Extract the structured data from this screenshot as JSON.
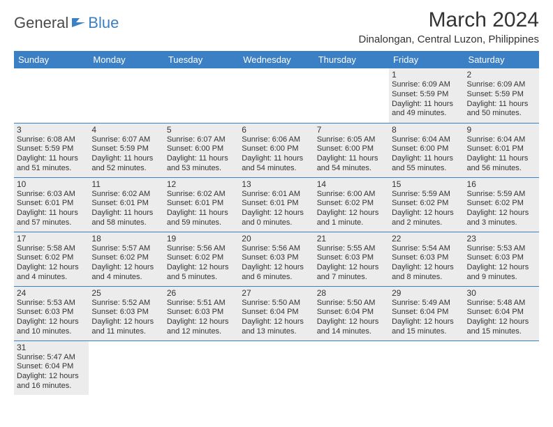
{
  "logo": {
    "text1": "General",
    "text2": "Blue"
  },
  "title": "March 2024",
  "location": "Dinalongan, Central Luzon, Philippines",
  "colors": {
    "header_bg": "#3b7fc4",
    "header_text": "#ffffff",
    "shade_bg": "#ececec",
    "border": "#3b7fc4",
    "logo_gray": "#4a4a4a",
    "logo_blue": "#3b7fc4"
  },
  "weekdays": [
    "Sunday",
    "Monday",
    "Tuesday",
    "Wednesday",
    "Thursday",
    "Friday",
    "Saturday"
  ],
  "weeks": [
    [
      {
        "empty": true
      },
      {
        "empty": true
      },
      {
        "empty": true
      },
      {
        "empty": true
      },
      {
        "empty": true
      },
      {
        "day": "1",
        "sunrise": "Sunrise: 6:09 AM",
        "sunset": "Sunset: 5:59 PM",
        "daylight": "Daylight: 11 hours and 49 minutes."
      },
      {
        "day": "2",
        "sunrise": "Sunrise: 6:09 AM",
        "sunset": "Sunset: 5:59 PM",
        "daylight": "Daylight: 11 hours and 50 minutes."
      }
    ],
    [
      {
        "day": "3",
        "sunrise": "Sunrise: 6:08 AM",
        "sunset": "Sunset: 5:59 PM",
        "daylight": "Daylight: 11 hours and 51 minutes."
      },
      {
        "day": "4",
        "sunrise": "Sunrise: 6:07 AM",
        "sunset": "Sunset: 5:59 PM",
        "daylight": "Daylight: 11 hours and 52 minutes."
      },
      {
        "day": "5",
        "sunrise": "Sunrise: 6:07 AM",
        "sunset": "Sunset: 6:00 PM",
        "daylight": "Daylight: 11 hours and 53 minutes."
      },
      {
        "day": "6",
        "sunrise": "Sunrise: 6:06 AM",
        "sunset": "Sunset: 6:00 PM",
        "daylight": "Daylight: 11 hours and 54 minutes."
      },
      {
        "day": "7",
        "sunrise": "Sunrise: 6:05 AM",
        "sunset": "Sunset: 6:00 PM",
        "daylight": "Daylight: 11 hours and 54 minutes."
      },
      {
        "day": "8",
        "sunrise": "Sunrise: 6:04 AM",
        "sunset": "Sunset: 6:00 PM",
        "daylight": "Daylight: 11 hours and 55 minutes."
      },
      {
        "day": "9",
        "sunrise": "Sunrise: 6:04 AM",
        "sunset": "Sunset: 6:01 PM",
        "daylight": "Daylight: 11 hours and 56 minutes."
      }
    ],
    [
      {
        "day": "10",
        "sunrise": "Sunrise: 6:03 AM",
        "sunset": "Sunset: 6:01 PM",
        "daylight": "Daylight: 11 hours and 57 minutes."
      },
      {
        "day": "11",
        "sunrise": "Sunrise: 6:02 AM",
        "sunset": "Sunset: 6:01 PM",
        "daylight": "Daylight: 11 hours and 58 minutes."
      },
      {
        "day": "12",
        "sunrise": "Sunrise: 6:02 AM",
        "sunset": "Sunset: 6:01 PM",
        "daylight": "Daylight: 11 hours and 59 minutes."
      },
      {
        "day": "13",
        "sunrise": "Sunrise: 6:01 AM",
        "sunset": "Sunset: 6:01 PM",
        "daylight": "Daylight: 12 hours and 0 minutes."
      },
      {
        "day": "14",
        "sunrise": "Sunrise: 6:00 AM",
        "sunset": "Sunset: 6:02 PM",
        "daylight": "Daylight: 12 hours and 1 minute."
      },
      {
        "day": "15",
        "sunrise": "Sunrise: 5:59 AM",
        "sunset": "Sunset: 6:02 PM",
        "daylight": "Daylight: 12 hours and 2 minutes."
      },
      {
        "day": "16",
        "sunrise": "Sunrise: 5:59 AM",
        "sunset": "Sunset: 6:02 PM",
        "daylight": "Daylight: 12 hours and 3 minutes."
      }
    ],
    [
      {
        "day": "17",
        "sunrise": "Sunrise: 5:58 AM",
        "sunset": "Sunset: 6:02 PM",
        "daylight": "Daylight: 12 hours and 4 minutes."
      },
      {
        "day": "18",
        "sunrise": "Sunrise: 5:57 AM",
        "sunset": "Sunset: 6:02 PM",
        "daylight": "Daylight: 12 hours and 4 minutes."
      },
      {
        "day": "19",
        "sunrise": "Sunrise: 5:56 AM",
        "sunset": "Sunset: 6:02 PM",
        "daylight": "Daylight: 12 hours and 5 minutes."
      },
      {
        "day": "20",
        "sunrise": "Sunrise: 5:56 AM",
        "sunset": "Sunset: 6:03 PM",
        "daylight": "Daylight: 12 hours and 6 minutes."
      },
      {
        "day": "21",
        "sunrise": "Sunrise: 5:55 AM",
        "sunset": "Sunset: 6:03 PM",
        "daylight": "Daylight: 12 hours and 7 minutes."
      },
      {
        "day": "22",
        "sunrise": "Sunrise: 5:54 AM",
        "sunset": "Sunset: 6:03 PM",
        "daylight": "Daylight: 12 hours and 8 minutes."
      },
      {
        "day": "23",
        "sunrise": "Sunrise: 5:53 AM",
        "sunset": "Sunset: 6:03 PM",
        "daylight": "Daylight: 12 hours and 9 minutes."
      }
    ],
    [
      {
        "day": "24",
        "sunrise": "Sunrise: 5:53 AM",
        "sunset": "Sunset: 6:03 PM",
        "daylight": "Daylight: 12 hours and 10 minutes."
      },
      {
        "day": "25",
        "sunrise": "Sunrise: 5:52 AM",
        "sunset": "Sunset: 6:03 PM",
        "daylight": "Daylight: 12 hours and 11 minutes."
      },
      {
        "day": "26",
        "sunrise": "Sunrise: 5:51 AM",
        "sunset": "Sunset: 6:03 PM",
        "daylight": "Daylight: 12 hours and 12 minutes."
      },
      {
        "day": "27",
        "sunrise": "Sunrise: 5:50 AM",
        "sunset": "Sunset: 6:04 PM",
        "daylight": "Daylight: 12 hours and 13 minutes."
      },
      {
        "day": "28",
        "sunrise": "Sunrise: 5:50 AM",
        "sunset": "Sunset: 6:04 PM",
        "daylight": "Daylight: 12 hours and 14 minutes."
      },
      {
        "day": "29",
        "sunrise": "Sunrise: 5:49 AM",
        "sunset": "Sunset: 6:04 PM",
        "daylight": "Daylight: 12 hours and 15 minutes."
      },
      {
        "day": "30",
        "sunrise": "Sunrise: 5:48 AM",
        "sunset": "Sunset: 6:04 PM",
        "daylight": "Daylight: 12 hours and 15 minutes."
      }
    ],
    [
      {
        "day": "31",
        "sunrise": "Sunrise: 5:47 AM",
        "sunset": "Sunset: 6:04 PM",
        "daylight": "Daylight: 12 hours and 16 minutes."
      },
      {
        "empty": true
      },
      {
        "empty": true
      },
      {
        "empty": true
      },
      {
        "empty": true
      },
      {
        "empty": true
      },
      {
        "empty": true
      }
    ]
  ]
}
